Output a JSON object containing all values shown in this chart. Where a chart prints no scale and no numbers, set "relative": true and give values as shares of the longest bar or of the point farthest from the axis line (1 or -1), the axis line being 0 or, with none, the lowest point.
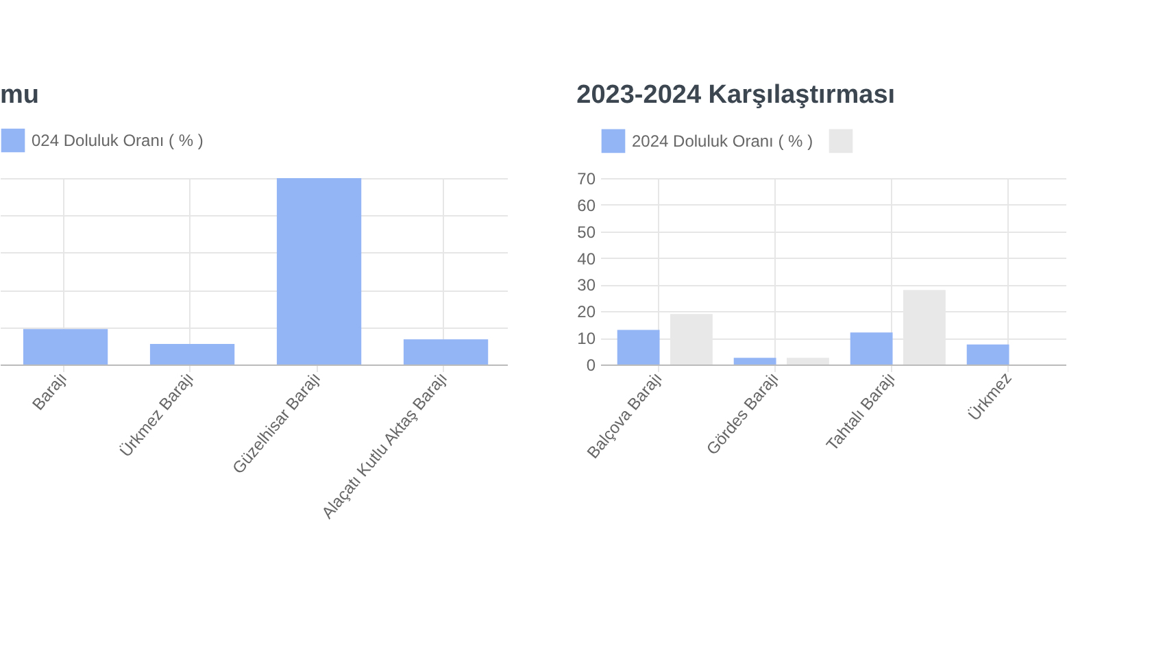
{
  "chart_data": [
    {
      "type": "bar",
      "title": "mu",
      "categories": [
        "Barajı",
        "Ürkmez Barajı",
        "Güzelhisar Barajı",
        "Alaçatı Kutlu Aktaş Barajı"
      ],
      "series": [
        {
          "name": "024 Doluluk Oranı ( % )",
          "color": "#93b4f5",
          "values": [
            0.19,
            0.11,
            1,
            0.135
          ]
        }
      ],
      "relative": true,
      "grid": true,
      "legend": "top"
    },
    {
      "type": "bar",
      "title": "2023-2024 Karşılaştırması",
      "categories": [
        "Balçova Barajı",
        "Gördes Barajı",
        "Tahtalı Barajı",
        "Ürkmez"
      ],
      "series": [
        {
          "name": "2024 Doluluk Oranı ( % )",
          "color": "#93b4f5",
          "values": [
            13,
            2.5,
            12,
            7.5
          ]
        },
        {
          "color": "#e8e8e8",
          "values": [
            19,
            2.5,
            28,
            null
          ]
        }
      ],
      "ylim": [
        0,
        70
      ],
      "yticks": [
        0,
        10,
        20,
        30,
        40,
        50,
        60,
        70
      ],
      "grid": true,
      "legend": "top"
    }
  ]
}
